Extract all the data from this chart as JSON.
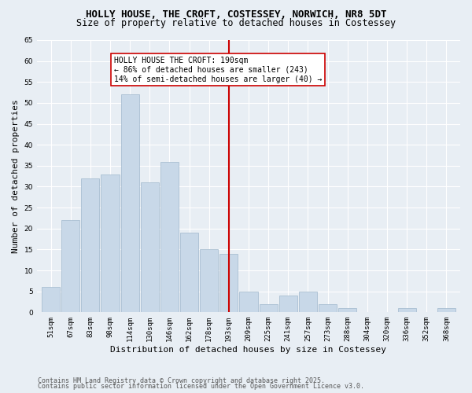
{
  "title1": "HOLLY HOUSE, THE CROFT, COSTESSEY, NORWICH, NR8 5DT",
  "title2": "Size of property relative to detached houses in Costessey",
  "xlabel": "Distribution of detached houses by size in Costessey",
  "ylabel": "Number of detached properties",
  "categories": [
    "51sqm",
    "67sqm",
    "83sqm",
    "98sqm",
    "114sqm",
    "130sqm",
    "146sqm",
    "162sqm",
    "178sqm",
    "193sqm",
    "209sqm",
    "225sqm",
    "241sqm",
    "257sqm",
    "273sqm",
    "288sqm",
    "304sqm",
    "320sqm",
    "336sqm",
    "352sqm",
    "368sqm"
  ],
  "values": [
    6,
    22,
    32,
    33,
    52,
    31,
    36,
    19,
    15,
    14,
    5,
    2,
    4,
    5,
    2,
    1,
    0,
    0,
    1,
    0,
    1
  ],
  "bar_color": "#c8d8e8",
  "bar_edgecolor": "#a0b8cc",
  "vline_x_index": 9,
  "vline_color": "#cc0000",
  "annotation_text": "HOLLY HOUSE THE CROFT: 190sqm\n← 86% of detached houses are smaller (243)\n14% of semi-detached houses are larger (40) →",
  "annotation_box_color": "#ffffff",
  "annotation_box_edgecolor": "#cc0000",
  "ylim": [
    0,
    65
  ],
  "yticks": [
    0,
    5,
    10,
    15,
    20,
    25,
    30,
    35,
    40,
    45,
    50,
    55,
    60,
    65
  ],
  "background_color": "#e8eef4",
  "plot_bg_color": "#e8eef4",
  "footer_line1": "Contains HM Land Registry data © Crown copyright and database right 2025.",
  "footer_line2": "Contains public sector information licensed under the Open Government Licence v3.0.",
  "title_fontsize": 9,
  "subtitle_fontsize": 8.5,
  "axis_label_fontsize": 8,
  "tick_fontsize": 6.5,
  "annotation_fontsize": 7,
  "footer_fontsize": 6
}
